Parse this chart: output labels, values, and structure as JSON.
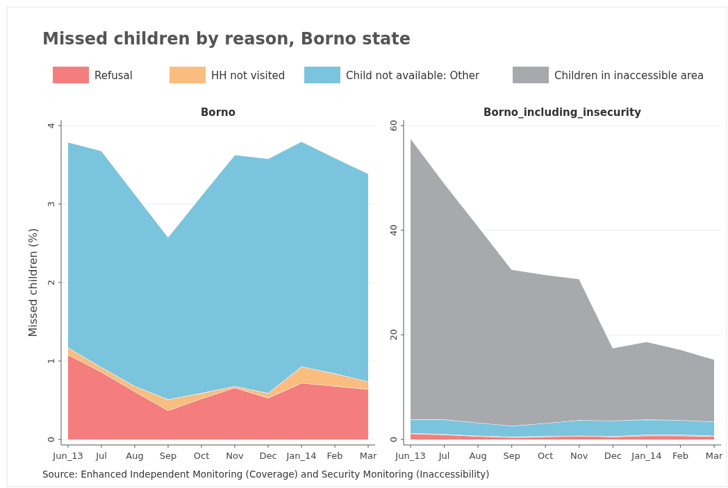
{
  "chart_data": [
    {
      "type": "area",
      "title": "Missed children by reason, Borno state",
      "subtitle": "Borno",
      "ylabel": "Missed children (%)",
      "stacked": true,
      "legend": "top",
      "categories": [
        "Jun_13",
        "Jul",
        "Aug",
        "Sep",
        "Oct",
        "Nov",
        "Dec",
        "Jan_14",
        "Feb",
        "Mar"
      ],
      "ylim": [
        0,
        4
      ],
      "yticks": [
        0,
        1,
        2,
        3,
        4
      ],
      "grid": "y",
      "annotations": [
        "Source: Enhanced Independent Monitoring (Coverage) and Security Monitoring (Inaccessibility)"
      ],
      "series": [
        {
          "name": "Refusal",
          "color": "#f47d7e",
          "values": [
            1.08,
            0.86,
            0.61,
            0.37,
            0.52,
            0.66,
            0.53,
            0.72,
            0.68,
            0.64
          ]
        },
        {
          "name": "HH not visited",
          "color": "#f9bd80",
          "values": [
            0.09,
            0.06,
            0.07,
            0.14,
            0.07,
            0.02,
            0.06,
            0.21,
            0.16,
            0.1
          ]
        },
        {
          "name": "Child not available: Other",
          "color": "#7bc4dd",
          "values": [
            2.62,
            2.76,
            2.45,
            2.07,
            2.52,
            2.95,
            2.99,
            2.87,
            2.75,
            2.65
          ]
        }
      ]
    },
    {
      "type": "area",
      "subtitle": "Borno_including_insecurity",
      "stacked": true,
      "legend": "top",
      "categories": [
        "Jun_13",
        "Jul",
        "Aug",
        "Sep",
        "Oct",
        "Nov",
        "Dec",
        "Jan_14",
        "Feb",
        "Mar"
      ],
      "ylim": [
        0,
        60
      ],
      "yticks": [
        0,
        20,
        40,
        60
      ],
      "grid": "y",
      "series": [
        {
          "color": "#f47d7e",
          "values": [
            1.1,
            0.9,
            0.6,
            0.4,
            0.5,
            0.7,
            0.5,
            0.7,
            0.7,
            0.6
          ]
        },
        {
          "color": "#f9bd80",
          "values": [
            0.1,
            0.1,
            0.1,
            0.1,
            0.1,
            0,
            0.1,
            0.2,
            0.2,
            0.1
          ]
        },
        {
          "color": "#7bc4dd",
          "values": [
            2.6,
            2.8,
            2.5,
            2.1,
            2.5,
            3.0,
            3.0,
            2.9,
            2.8,
            2.7
          ]
        },
        {
          "name": "Children in inaccessible area",
          "color": "#a8a9ad",
          "values": [
            53.8,
            45.2,
            37.6,
            29.9,
            28.4,
            27.0,
            13.9,
            14.9,
            13.5,
            11.9
          ]
        }
      ]
    }
  ]
}
